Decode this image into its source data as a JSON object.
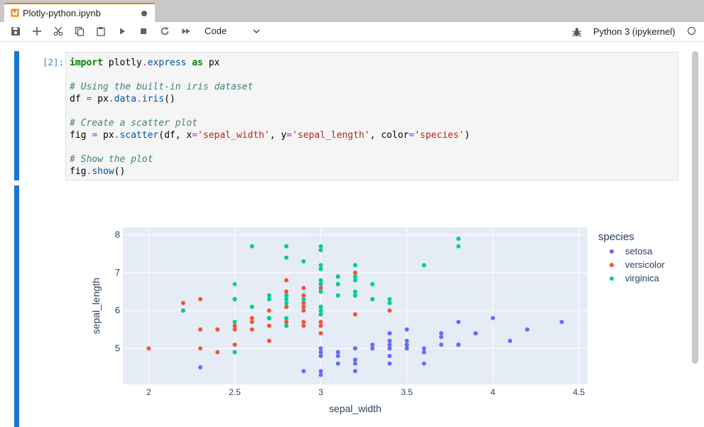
{
  "tab": {
    "title": "Plotly-python.ipynb",
    "icon": "notebook-icon",
    "dirty": true
  },
  "toolbar": {
    "buttons": [
      "save-icon",
      "add-cell-icon",
      "cut-icon",
      "copy-icon",
      "paste-icon",
      "run-icon",
      "stop-icon",
      "restart-icon",
      "fast-forward-icon"
    ],
    "cell_type": "Code",
    "kernel": "Python 3 (ipykernel)"
  },
  "cell": {
    "prompt": "[2]:",
    "lines": [
      [
        [
          "kw",
          "import"
        ],
        [
          "t",
          " plotly"
        ],
        [
          "op",
          "."
        ],
        [
          "mod",
          "express"
        ],
        [
          "t",
          " "
        ],
        [
          "kw",
          "as"
        ],
        [
          "t",
          " px"
        ]
      ],
      [],
      [
        [
          "cm",
          "# Using the built-in iris dataset"
        ]
      ],
      [
        [
          "t",
          "df "
        ],
        [
          "op",
          "="
        ],
        [
          "t",
          " px"
        ],
        [
          "op",
          "."
        ],
        [
          "mod",
          "data"
        ],
        [
          "op",
          "."
        ],
        [
          "mod",
          "iris"
        ],
        [
          "t",
          "()"
        ]
      ],
      [],
      [
        [
          "cm",
          "# Create a scatter plot"
        ]
      ],
      [
        [
          "t",
          "fig "
        ],
        [
          "op",
          "="
        ],
        [
          "t",
          " px"
        ],
        [
          "op",
          "."
        ],
        [
          "mod",
          "scatter"
        ],
        [
          "t",
          "(df, x"
        ],
        [
          "op",
          "="
        ],
        [
          "str",
          "'sepal_width'"
        ],
        [
          "t",
          ", y"
        ],
        [
          "op",
          "="
        ],
        [
          "str",
          "'sepal_length'"
        ],
        [
          "t",
          ", color"
        ],
        [
          "op",
          "="
        ],
        [
          "str",
          "'species'"
        ],
        [
          "t",
          ")"
        ]
      ],
      [],
      [
        [
          "cm",
          "# Show the plot"
        ]
      ],
      [
        [
          "t",
          "fig"
        ],
        [
          "op",
          "."
        ],
        [
          "mod",
          "show"
        ],
        [
          "t",
          "()"
        ]
      ]
    ]
  },
  "colors": {
    "accent": "#1976d2",
    "setosa": "#636efa",
    "versicolor": "#ef553b",
    "virginica": "#00cc96"
  },
  "chart_data": {
    "type": "scatter",
    "xlabel": "sepal_width",
    "ylabel": "sepal_length",
    "xlim": [
      1.85,
      4.55
    ],
    "ylim": [
      4.05,
      8.2
    ],
    "xticks": [
      2,
      2.5,
      3,
      3.5,
      4,
      4.5
    ],
    "yticks": [
      5,
      6,
      7,
      8
    ],
    "legend_title": "species",
    "legend_position": "right",
    "series": [
      {
        "name": "setosa",
        "color": "#636efa",
        "points": [
          [
            3.5,
            5.1
          ],
          [
            3.0,
            4.9
          ],
          [
            3.2,
            4.7
          ],
          [
            3.1,
            4.6
          ],
          [
            3.6,
            5.0
          ],
          [
            3.9,
            5.4
          ],
          [
            3.4,
            4.6
          ],
          [
            3.4,
            5.0
          ],
          [
            2.9,
            4.4
          ],
          [
            3.1,
            4.9
          ],
          [
            3.7,
            5.4
          ],
          [
            3.4,
            4.8
          ],
          [
            3.0,
            4.8
          ],
          [
            3.0,
            4.3
          ],
          [
            4.0,
            5.8
          ],
          [
            4.4,
            5.7
          ],
          [
            3.9,
            5.4
          ],
          [
            3.5,
            5.1
          ],
          [
            3.8,
            5.7
          ],
          [
            3.8,
            5.1
          ],
          [
            3.4,
            5.4
          ],
          [
            3.7,
            5.1
          ],
          [
            3.6,
            4.6
          ],
          [
            3.3,
            5.1
          ],
          [
            3.4,
            4.8
          ],
          [
            3.0,
            5.0
          ],
          [
            3.4,
            5.0
          ],
          [
            3.5,
            5.2
          ],
          [
            3.4,
            5.2
          ],
          [
            3.2,
            4.7
          ],
          [
            3.1,
            4.8
          ],
          [
            3.4,
            5.4
          ],
          [
            4.1,
            5.2
          ],
          [
            4.2,
            5.5
          ],
          [
            3.1,
            4.9
          ],
          [
            3.2,
            5.0
          ],
          [
            3.5,
            5.5
          ],
          [
            3.6,
            4.9
          ],
          [
            3.0,
            4.4
          ],
          [
            3.4,
            5.1
          ],
          [
            3.5,
            5.0
          ],
          [
            2.3,
            4.5
          ],
          [
            3.2,
            4.4
          ],
          [
            3.5,
            5.0
          ],
          [
            3.8,
            5.1
          ],
          [
            3.0,
            4.8
          ],
          [
            3.8,
            5.1
          ],
          [
            3.2,
            4.6
          ],
          [
            3.7,
            5.3
          ],
          [
            3.3,
            5.0
          ]
        ]
      },
      {
        "name": "versicolor",
        "color": "#ef553b",
        "points": [
          [
            3.2,
            7.0
          ],
          [
            3.2,
            6.4
          ],
          [
            3.1,
            6.9
          ],
          [
            2.3,
            5.5
          ],
          [
            2.8,
            6.5
          ],
          [
            2.8,
            5.7
          ],
          [
            3.3,
            6.3
          ],
          [
            2.4,
            4.9
          ],
          [
            2.9,
            6.6
          ],
          [
            2.7,
            5.2
          ],
          [
            2.0,
            5.0
          ],
          [
            3.0,
            5.9
          ],
          [
            2.2,
            6.0
          ],
          [
            2.9,
            6.1
          ],
          [
            2.9,
            5.6
          ],
          [
            3.1,
            6.7
          ],
          [
            3.0,
            5.6
          ],
          [
            2.7,
            5.8
          ],
          [
            2.2,
            6.2
          ],
          [
            2.5,
            5.6
          ],
          [
            3.2,
            5.9
          ],
          [
            2.8,
            6.1
          ],
          [
            2.5,
            6.3
          ],
          [
            2.8,
            6.1
          ],
          [
            2.9,
            6.4
          ],
          [
            3.0,
            6.6
          ],
          [
            2.8,
            6.8
          ],
          [
            3.0,
            6.7
          ],
          [
            2.9,
            6.0
          ],
          [
            2.6,
            5.7
          ],
          [
            2.4,
            5.5
          ],
          [
            2.4,
            5.5
          ],
          [
            2.7,
            5.8
          ],
          [
            2.7,
            6.0
          ],
          [
            3.0,
            5.4
          ],
          [
            3.4,
            6.0
          ],
          [
            3.1,
            6.7
          ],
          [
            2.3,
            6.3
          ],
          [
            3.0,
            5.6
          ],
          [
            2.5,
            5.5
          ],
          [
            2.6,
            5.5
          ],
          [
            3.0,
            6.1
          ],
          [
            2.6,
            5.8
          ],
          [
            2.3,
            5.0
          ],
          [
            2.7,
            5.6
          ],
          [
            3.0,
            5.7
          ],
          [
            2.9,
            5.7
          ],
          [
            2.9,
            6.2
          ],
          [
            2.5,
            5.1
          ],
          [
            2.8,
            5.7
          ]
        ]
      },
      {
        "name": "virginica",
        "color": "#00cc96",
        "points": [
          [
            3.3,
            6.3
          ],
          [
            2.7,
            5.8
          ],
          [
            3.0,
            7.1
          ],
          [
            2.9,
            6.3
          ],
          [
            3.0,
            6.5
          ],
          [
            3.0,
            7.6
          ],
          [
            2.5,
            4.9
          ],
          [
            2.9,
            7.3
          ],
          [
            2.5,
            6.7
          ],
          [
            3.6,
            7.2
          ],
          [
            3.2,
            6.5
          ],
          [
            2.7,
            6.4
          ],
          [
            3.0,
            6.8
          ],
          [
            2.5,
            5.7
          ],
          [
            2.8,
            5.8
          ],
          [
            3.2,
            6.4
          ],
          [
            3.0,
            6.5
          ],
          [
            3.8,
            7.7
          ],
          [
            2.6,
            7.7
          ],
          [
            2.2,
            6.0
          ],
          [
            3.2,
            6.9
          ],
          [
            2.8,
            5.6
          ],
          [
            2.8,
            7.7
          ],
          [
            2.7,
            6.3
          ],
          [
            3.3,
            6.7
          ],
          [
            3.2,
            7.2
          ],
          [
            2.8,
            6.2
          ],
          [
            3.0,
            6.1
          ],
          [
            2.8,
            6.4
          ],
          [
            3.0,
            7.2
          ],
          [
            2.8,
            7.4
          ],
          [
            3.8,
            7.9
          ],
          [
            2.8,
            6.4
          ],
          [
            2.8,
            6.3
          ],
          [
            2.6,
            6.1
          ],
          [
            3.0,
            7.7
          ],
          [
            3.4,
            6.3
          ],
          [
            3.1,
            6.4
          ],
          [
            3.0,
            6.0
          ],
          [
            3.1,
            6.9
          ],
          [
            3.1,
            6.7
          ],
          [
            3.1,
            6.9
          ],
          [
            2.7,
            5.8
          ],
          [
            3.2,
            6.8
          ],
          [
            3.3,
            6.7
          ],
          [
            3.0,
            6.7
          ],
          [
            2.5,
            6.3
          ],
          [
            3.0,
            6.5
          ],
          [
            3.4,
            6.2
          ],
          [
            3.0,
            5.9
          ]
        ]
      }
    ]
  }
}
